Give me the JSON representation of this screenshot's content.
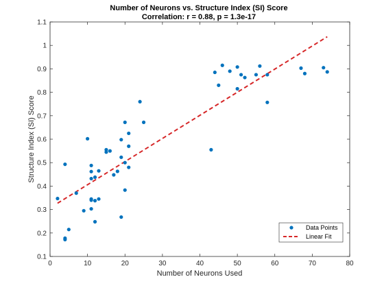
{
  "chart_data": {
    "type": "scatter",
    "title": "Number of Neurons vs. Structure Index (SI) Score",
    "subtitle": "Correlation: r = 0.88, p = 1.3e-17",
    "xlabel": "Number of Neurons Used",
    "ylabel": "Structure Index (SI) Score",
    "xlim": [
      0,
      80
    ],
    "ylim": [
      0.1,
      1.1
    ],
    "x_ticks": [
      "0",
      "10",
      "20",
      "30",
      "40",
      "50",
      "60",
      "70",
      "80"
    ],
    "y_ticks": [
      "0.1",
      "0.2",
      "0.3",
      "0.4",
      "0.5",
      "0.6",
      "0.7",
      "0.8",
      "0.9",
      "1",
      "1.1"
    ],
    "grid": false,
    "legend_position": "bottom-right",
    "series": [
      {
        "name": "Data Points",
        "kind": "scatter",
        "color": "#0072BD",
        "points": [
          [
            2,
            0.347
          ],
          [
            4,
            0.493
          ],
          [
            4,
            0.178
          ],
          [
            4,
            0.172
          ],
          [
            5,
            0.215
          ],
          [
            7,
            0.37
          ],
          [
            9,
            0.295
          ],
          [
            10,
            0.602
          ],
          [
            11,
            0.488
          ],
          [
            11,
            0.462
          ],
          [
            11,
            0.432
          ],
          [
            11,
            0.345
          ],
          [
            11,
            0.34
          ],
          [
            11,
            0.303
          ],
          [
            12,
            0.438
          ],
          [
            12,
            0.338
          ],
          [
            12,
            0.248
          ],
          [
            13,
            0.465
          ],
          [
            13,
            0.345
          ],
          [
            15,
            0.555
          ],
          [
            15,
            0.545
          ],
          [
            16,
            0.55
          ],
          [
            17,
            0.448
          ],
          [
            18,
            0.463
          ],
          [
            19,
            0.598
          ],
          [
            19,
            0.523
          ],
          [
            19,
            0.268
          ],
          [
            20,
            0.672
          ],
          [
            20,
            0.5
          ],
          [
            20,
            0.383
          ],
          [
            21,
            0.625
          ],
          [
            21,
            0.57
          ],
          [
            21,
            0.48
          ],
          [
            24,
            0.76
          ],
          [
            25,
            0.672
          ],
          [
            43,
            0.555
          ],
          [
            44,
            0.885
          ],
          [
            45,
            0.83
          ],
          [
            46,
            0.915
          ],
          [
            48,
            0.89
          ],
          [
            50,
            0.908
          ],
          [
            50,
            0.815
          ],
          [
            51,
            0.875
          ],
          [
            52,
            0.863
          ],
          [
            55,
            0.875
          ],
          [
            56,
            0.912
          ],
          [
            58,
            0.875
          ],
          [
            58,
            0.757
          ],
          [
            67,
            0.903
          ],
          [
            68,
            0.88
          ],
          [
            73,
            0.905
          ],
          [
            74,
            0.887
          ]
        ]
      },
      {
        "name": "Linear Fit",
        "kind": "line",
        "style": "dashed",
        "color": "#D62728",
        "points": [
          [
            2,
            0.327
          ],
          [
            74,
            1.037
          ]
        ]
      }
    ]
  }
}
